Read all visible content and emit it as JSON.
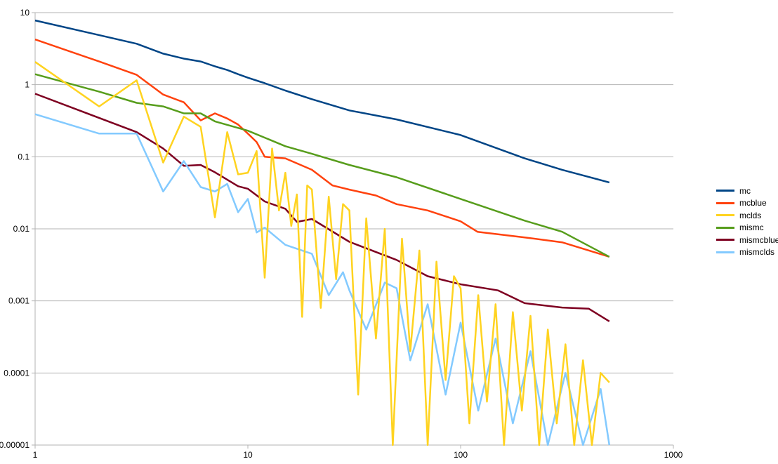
{
  "chart_data": {
    "type": "line",
    "title": "",
    "xlabel": "",
    "ylabel": "",
    "xscale": "log",
    "yscale": "log",
    "xlim": [
      1,
      1000
    ],
    "ylim": [
      1e-05,
      10
    ],
    "grid": "horizontal",
    "legend_position": "right",
    "x_ticks": [
      {
        "value": 1,
        "label": "1"
      },
      {
        "value": 10,
        "label": "10"
      },
      {
        "value": 100,
        "label": "100"
      },
      {
        "value": 1000,
        "label": "1000"
      }
    ],
    "y_ticks": [
      {
        "value": 10,
        "label": "10"
      },
      {
        "value": 1,
        "label": "1"
      },
      {
        "value": 0.1,
        "label": "0.1"
      },
      {
        "value": 0.01,
        "label": "0.01"
      },
      {
        "value": 0.001,
        "label": "0.001"
      },
      {
        "value": 0.0001,
        "label": "0.0001"
      },
      {
        "value": 1e-05,
        "label": "0.00001"
      }
    ],
    "series": [
      {
        "name": "mc",
        "color": "#004586",
        "x": [
          1,
          3,
          4,
          5,
          6,
          7,
          8,
          9,
          10,
          12,
          15,
          20,
          30,
          50,
          100,
          200,
          300,
          500
        ],
        "y": [
          7.8,
          3.7,
          2.7,
          2.3,
          2.1,
          1.8,
          1.6,
          1.4,
          1.25,
          1.05,
          0.83,
          0.63,
          0.44,
          0.33,
          0.2,
          0.095,
          0.066,
          0.044
        ]
      },
      {
        "name": "mcblue",
        "color": "#ff420e",
        "x": [
          1,
          2,
          3,
          4,
          5,
          6,
          7,
          8,
          9,
          10,
          11,
          12,
          15,
          20,
          25,
          30,
          40,
          50,
          70,
          100,
          120,
          200,
          300,
          500
        ],
        "y": [
          4.25,
          2.1,
          1.37,
          0.73,
          0.57,
          0.32,
          0.4,
          0.34,
          0.28,
          0.21,
          0.16,
          0.1,
          0.095,
          0.066,
          0.04,
          0.035,
          0.029,
          0.022,
          0.018,
          0.0127,
          0.0091,
          0.0076,
          0.0065,
          0.0041
        ]
      },
      {
        "name": "mclds",
        "color": "#ffd320",
        "x": [
          1,
          2,
          3,
          4,
          5,
          6,
          7,
          8,
          9,
          10,
          11,
          12,
          13,
          14,
          15,
          16,
          17,
          18,
          19,
          20,
          22,
          24,
          26,
          28,
          30,
          33,
          36,
          40,
          44,
          48,
          53,
          58,
          64,
          70,
          77,
          85,
          93,
          100,
          110,
          121,
          133,
          146,
          160,
          176,
          194,
          213,
          234,
          257,
          283,
          311,
          342,
          376,
          414,
          455,
          500
        ],
        "y": [
          2.07,
          0.5,
          1.15,
          0.083,
          0.36,
          0.26,
          0.0144,
          0.22,
          0.057,
          0.06,
          0.12,
          0.0021,
          0.13,
          0.018,
          0.06,
          0.011,
          0.03,
          0.0006,
          0.04,
          0.035,
          0.0008,
          0.028,
          0.002,
          0.022,
          0.018,
          5e-05,
          0.014,
          0.0003,
          0.01,
          1e-05,
          0.0073,
          0.0002,
          0.005,
          1e-05,
          0.0035,
          8e-05,
          0.0022,
          0.0015,
          2e-05,
          0.0012,
          4e-05,
          0.0009,
          1e-05,
          0.0007,
          3e-05,
          0.00062,
          1e-05,
          0.0004,
          2e-05,
          0.00025,
          1e-05,
          0.00015,
          1e-05,
          0.0001,
          7.4e-05
        ]
      },
      {
        "name": "mismc",
        "color": "#579d1c",
        "x": [
          1,
          2,
          3,
          4,
          5,
          6,
          7,
          10,
          15,
          20,
          30,
          50,
          100,
          200,
          300,
          500
        ],
        "y": [
          1.4,
          0.8,
          0.56,
          0.5,
          0.4,
          0.4,
          0.31,
          0.23,
          0.14,
          0.11,
          0.077,
          0.052,
          0.026,
          0.013,
          0.0091,
          0.0041
        ]
      },
      {
        "name": "mismcblue",
        "color": "#7e0021",
        "x": [
          1,
          3,
          4,
          5,
          6,
          7,
          9,
          10,
          12,
          15,
          17,
          20,
          30,
          50,
          70,
          100,
          150,
          200,
          300,
          400,
          500
        ],
        "y": [
          0.75,
          0.22,
          0.13,
          0.075,
          0.077,
          0.061,
          0.039,
          0.036,
          0.024,
          0.019,
          0.0125,
          0.0137,
          0.0066,
          0.0037,
          0.0022,
          0.0017,
          0.0014,
          0.00093,
          0.00081,
          0.00078,
          0.00052
        ]
      },
      {
        "name": "mismclds",
        "color": "#83caff",
        "x": [
          1,
          2,
          3,
          4,
          5,
          6,
          7,
          8,
          9,
          10,
          11,
          12,
          15,
          20,
          24,
          28,
          30,
          36,
          44,
          50,
          58,
          70,
          85,
          100,
          121,
          146,
          176,
          213,
          257,
          311,
          376,
          455,
          500
        ],
        "y": [
          0.39,
          0.21,
          0.21,
          0.033,
          0.087,
          0.038,
          0.033,
          0.042,
          0.017,
          0.026,
          0.0089,
          0.0104,
          0.006,
          0.0045,
          0.0012,
          0.0025,
          0.0014,
          0.0004,
          0.0018,
          0.0015,
          0.00015,
          0.0009,
          5e-05,
          0.0005,
          3e-05,
          0.0003,
          2e-05,
          0.0002,
          1e-05,
          0.0001,
          1e-05,
          6e-05,
          1e-05
        ]
      }
    ]
  }
}
